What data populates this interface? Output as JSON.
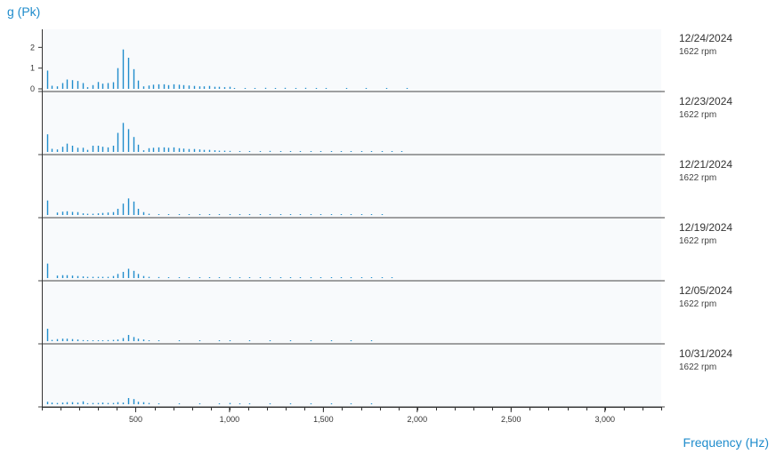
{
  "chart_data": {
    "type": "waterfall-spectrum",
    "ylabel": "g (Pk)",
    "xlabel": "Frequency (Hz)",
    "xlim": [
      0,
      3300
    ],
    "x_ticks": [
      {
        "value": 500,
        "label": "500"
      },
      {
        "value": 1000,
        "label": "1,000"
      },
      {
        "value": 1500,
        "label": "1,500"
      },
      {
        "value": 2000,
        "label": "2,000"
      },
      {
        "value": 2500,
        "label": "2,500"
      },
      {
        "value": 3000,
        "label": "3,000"
      }
    ],
    "y_ticks": [
      {
        "value": 0,
        "label": "0"
      },
      {
        "value": 1,
        "label": "1"
      },
      {
        "value": 2,
        "label": "2"
      }
    ],
    "ylim": [
      0,
      2.4
    ],
    "series": [
      {
        "date": "12/24/2024",
        "speed": "1622 rpm",
        "peaks": [
          [
            27,
            0.88
          ],
          [
            54,
            0.15
          ],
          [
            81,
            0.12
          ],
          [
            108,
            0.28
          ],
          [
            135,
            0.45
          ],
          [
            162,
            0.42
          ],
          [
            189,
            0.38
          ],
          [
            216,
            0.28
          ],
          [
            243,
            0.08
          ],
          [
            270,
            0.18
          ],
          [
            297,
            0.33
          ],
          [
            324,
            0.25
          ],
          [
            351,
            0.28
          ],
          [
            378,
            0.32
          ],
          [
            405,
            1.0
          ],
          [
            432,
            1.9
          ],
          [
            459,
            1.5
          ],
          [
            486,
            0.95
          ],
          [
            513,
            0.4
          ],
          [
            540,
            0.12
          ],
          [
            567,
            0.16
          ],
          [
            594,
            0.2
          ],
          [
            621,
            0.22
          ],
          [
            648,
            0.22
          ],
          [
            675,
            0.18
          ],
          [
            702,
            0.22
          ],
          [
            729,
            0.2
          ],
          [
            756,
            0.18
          ],
          [
            783,
            0.16
          ],
          [
            810,
            0.14
          ],
          [
            837,
            0.12
          ],
          [
            864,
            0.12
          ],
          [
            891,
            0.14
          ],
          [
            918,
            0.1
          ],
          [
            945,
            0.1
          ],
          [
            972,
            0.08
          ],
          [
            999,
            0.1
          ],
          [
            1026,
            0.04
          ],
          [
            1080,
            0.04
          ],
          [
            1134,
            0.04
          ],
          [
            1188,
            0.05
          ],
          [
            1242,
            0.04
          ],
          [
            1296,
            0.05
          ],
          [
            1350,
            0.04
          ],
          [
            1404,
            0.05
          ],
          [
            1458,
            0.04
          ],
          [
            1512,
            0.03
          ],
          [
            1620,
            0.03
          ],
          [
            1728,
            0.03
          ],
          [
            1836,
            0.02
          ],
          [
            1944,
            0.02
          ]
        ]
      },
      {
        "date": "12/23/2024",
        "speed": "1622 rpm",
        "peaks": [
          [
            27,
            0.85
          ],
          [
            54,
            0.15
          ],
          [
            81,
            0.12
          ],
          [
            108,
            0.25
          ],
          [
            135,
            0.4
          ],
          [
            162,
            0.3
          ],
          [
            189,
            0.2
          ],
          [
            216,
            0.2
          ],
          [
            243,
            0.1
          ],
          [
            270,
            0.3
          ],
          [
            297,
            0.3
          ],
          [
            324,
            0.25
          ],
          [
            351,
            0.22
          ],
          [
            378,
            0.3
          ],
          [
            405,
            0.92
          ],
          [
            432,
            1.4
          ],
          [
            459,
            1.1
          ],
          [
            486,
            0.72
          ],
          [
            513,
            0.35
          ],
          [
            540,
            0.08
          ],
          [
            567,
            0.18
          ],
          [
            594,
            0.2
          ],
          [
            621,
            0.22
          ],
          [
            648,
            0.22
          ],
          [
            675,
            0.2
          ],
          [
            702,
            0.22
          ],
          [
            729,
            0.18
          ],
          [
            756,
            0.16
          ],
          [
            783,
            0.14
          ],
          [
            810,
            0.14
          ],
          [
            837,
            0.12
          ],
          [
            864,
            0.1
          ],
          [
            891,
            0.1
          ],
          [
            918,
            0.08
          ],
          [
            945,
            0.06
          ],
          [
            972,
            0.06
          ],
          [
            999,
            0.05
          ],
          [
            1053,
            0.04
          ],
          [
            1107,
            0.04
          ],
          [
            1161,
            0.04
          ],
          [
            1215,
            0.05
          ],
          [
            1269,
            0.04
          ],
          [
            1323,
            0.04
          ],
          [
            1377,
            0.04
          ],
          [
            1431,
            0.03
          ],
          [
            1485,
            0.03
          ],
          [
            1539,
            0.03
          ],
          [
            1593,
            0.03
          ],
          [
            1647,
            0.03
          ],
          [
            1701,
            0.03
          ],
          [
            1755,
            0.03
          ],
          [
            1809,
            0.02
          ],
          [
            1863,
            0.02
          ],
          [
            1917,
            0.02
          ]
        ]
      },
      {
        "date": "12/21/2024",
        "speed": "1622 rpm",
        "peaks": [
          [
            27,
            0.7
          ],
          [
            81,
            0.12
          ],
          [
            108,
            0.16
          ],
          [
            135,
            0.18
          ],
          [
            162,
            0.15
          ],
          [
            189,
            0.14
          ],
          [
            216,
            0.08
          ],
          [
            243,
            0.06
          ],
          [
            270,
            0.06
          ],
          [
            297,
            0.08
          ],
          [
            324,
            0.1
          ],
          [
            351,
            0.12
          ],
          [
            378,
            0.14
          ],
          [
            405,
            0.3
          ],
          [
            432,
            0.55
          ],
          [
            459,
            0.8
          ],
          [
            486,
            0.65
          ],
          [
            513,
            0.3
          ],
          [
            540,
            0.14
          ],
          [
            567,
            0.06
          ],
          [
            621,
            0.04
          ],
          [
            675,
            0.04
          ],
          [
            729,
            0.04
          ],
          [
            783,
            0.04
          ],
          [
            837,
            0.04
          ],
          [
            891,
            0.04
          ],
          [
            945,
            0.04
          ],
          [
            999,
            0.04
          ],
          [
            1053,
            0.03
          ],
          [
            1107,
            0.03
          ],
          [
            1161,
            0.03
          ],
          [
            1215,
            0.03
          ],
          [
            1269,
            0.03
          ],
          [
            1323,
            0.03
          ],
          [
            1377,
            0.03
          ],
          [
            1431,
            0.03
          ],
          [
            1485,
            0.03
          ],
          [
            1539,
            0.03
          ],
          [
            1593,
            0.03
          ],
          [
            1647,
            0.03
          ],
          [
            1701,
            0.03
          ],
          [
            1755,
            0.03
          ],
          [
            1809,
            0.02
          ]
        ]
      },
      {
        "date": "12/19/2024",
        "speed": "1622 rpm",
        "peaks": [
          [
            27,
            0.7
          ],
          [
            81,
            0.12
          ],
          [
            108,
            0.14
          ],
          [
            135,
            0.14
          ],
          [
            162,
            0.12
          ],
          [
            189,
            0.1
          ],
          [
            216,
            0.08
          ],
          [
            243,
            0.06
          ],
          [
            270,
            0.06
          ],
          [
            297,
            0.06
          ],
          [
            324,
            0.06
          ],
          [
            351,
            0.06
          ],
          [
            378,
            0.1
          ],
          [
            405,
            0.2
          ],
          [
            432,
            0.3
          ],
          [
            459,
            0.45
          ],
          [
            486,
            0.35
          ],
          [
            513,
            0.2
          ],
          [
            540,
            0.1
          ],
          [
            567,
            0.06
          ],
          [
            621,
            0.05
          ],
          [
            675,
            0.04
          ],
          [
            729,
            0.04
          ],
          [
            783,
            0.04
          ],
          [
            837,
            0.04
          ],
          [
            891,
            0.04
          ],
          [
            945,
            0.04
          ],
          [
            999,
            0.04
          ],
          [
            1053,
            0.03
          ],
          [
            1107,
            0.03
          ],
          [
            1161,
            0.03
          ],
          [
            1215,
            0.03
          ],
          [
            1269,
            0.03
          ],
          [
            1323,
            0.03
          ],
          [
            1377,
            0.03
          ],
          [
            1431,
            0.03
          ],
          [
            1485,
            0.03
          ],
          [
            1539,
            0.03
          ],
          [
            1593,
            0.03
          ],
          [
            1647,
            0.02
          ],
          [
            1701,
            0.02
          ],
          [
            1755,
            0.02
          ],
          [
            1809,
            0.02
          ],
          [
            1863,
            0.02
          ]
        ]
      },
      {
        "date": "12/05/2024",
        "speed": "1622 rpm",
        "peaks": [
          [
            27,
            0.6
          ],
          [
            54,
            0.06
          ],
          [
            81,
            0.1
          ],
          [
            108,
            0.12
          ],
          [
            135,
            0.12
          ],
          [
            162,
            0.1
          ],
          [
            189,
            0.08
          ],
          [
            216,
            0.05
          ],
          [
            243,
            0.04
          ],
          [
            270,
            0.04
          ],
          [
            297,
            0.04
          ],
          [
            324,
            0.04
          ],
          [
            351,
            0.05
          ],
          [
            378,
            0.06
          ],
          [
            405,
            0.08
          ],
          [
            432,
            0.15
          ],
          [
            459,
            0.3
          ],
          [
            486,
            0.2
          ],
          [
            513,
            0.12
          ],
          [
            540,
            0.08
          ],
          [
            567,
            0.04
          ],
          [
            621,
            0.03
          ],
          [
            729,
            0.03
          ],
          [
            837,
            0.03
          ],
          [
            945,
            0.03
          ],
          [
            999,
            0.03
          ],
          [
            1107,
            0.02
          ],
          [
            1215,
            0.02
          ],
          [
            1323,
            0.02
          ],
          [
            1431,
            0.02
          ],
          [
            1539,
            0.02
          ],
          [
            1647,
            0.02
          ],
          [
            1755,
            0.02
          ]
        ]
      },
      {
        "date": "10/31/2024",
        "speed": "1622 rpm",
        "peaks": [
          [
            27,
            0.12
          ],
          [
            54,
            0.08
          ],
          [
            81,
            0.06
          ],
          [
            108,
            0.08
          ],
          [
            135,
            0.1
          ],
          [
            162,
            0.1
          ],
          [
            189,
            0.08
          ],
          [
            216,
            0.14
          ],
          [
            243,
            0.05
          ],
          [
            270,
            0.06
          ],
          [
            297,
            0.06
          ],
          [
            324,
            0.08
          ],
          [
            351,
            0.06
          ],
          [
            378,
            0.06
          ],
          [
            405,
            0.1
          ],
          [
            432,
            0.08
          ],
          [
            459,
            0.3
          ],
          [
            486,
            0.25
          ],
          [
            513,
            0.12
          ],
          [
            540,
            0.1
          ],
          [
            567,
            0.06
          ],
          [
            621,
            0.04
          ],
          [
            729,
            0.04
          ],
          [
            837,
            0.04
          ],
          [
            945,
            0.04
          ],
          [
            999,
            0.06
          ],
          [
            1053,
            0.04
          ],
          [
            1107,
            0.03
          ],
          [
            1215,
            0.03
          ],
          [
            1323,
            0.03
          ],
          [
            1431,
            0.03
          ],
          [
            1539,
            0.03
          ],
          [
            1647,
            0.03
          ],
          [
            1755,
            0.03
          ]
        ]
      }
    ]
  },
  "colors": {
    "trace": "#1f8ccc",
    "plot_bg": "#f8fafc",
    "axis": "#333333",
    "separator": "#444444",
    "label": "#1f8ccc"
  }
}
